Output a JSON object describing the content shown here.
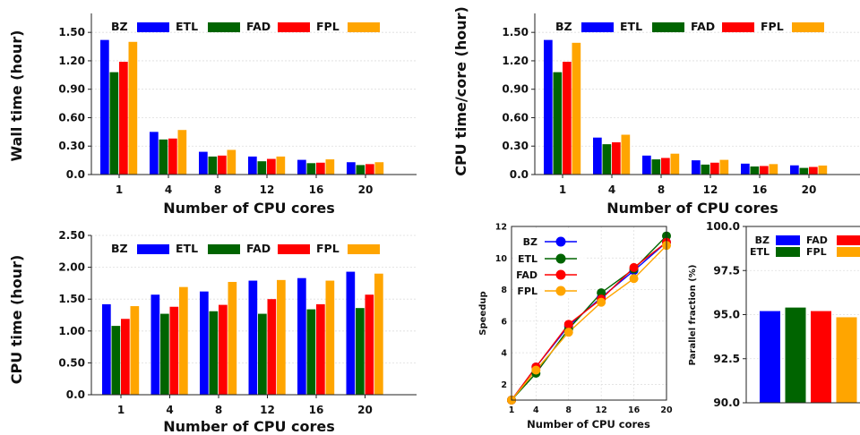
{
  "colors": {
    "BZ": "#0000ff",
    "ETL": "#006400",
    "FAD": "#ff0000",
    "FPL": "#ffa500"
  },
  "chart_data": [
    {
      "id": "wall",
      "type": "bar",
      "categories": [
        "1",
        "4",
        "8",
        "12",
        "16",
        "20"
      ],
      "series": [
        {
          "name": "BZ",
          "values": [
            1.42,
            0.45,
            0.24,
            0.19,
            0.155,
            0.13
          ]
        },
        {
          "name": "ETL",
          "values": [
            1.08,
            0.37,
            0.19,
            0.14,
            0.12,
            0.1
          ]
        },
        {
          "name": "FAD",
          "values": [
            1.19,
            0.38,
            0.2,
            0.165,
            0.125,
            0.11
          ]
        },
        {
          "name": "FPL",
          "values": [
            1.4,
            0.47,
            0.26,
            0.19,
            0.16,
            0.13
          ]
        }
      ],
      "xlabel": "Number of CPU cores",
      "ylabel": "Wall time (hour)",
      "ylim": [
        0,
        1.7
      ],
      "yticks": [
        "0.0",
        "0.30",
        "0.60",
        "0.90",
        "1.20",
        "1.50"
      ],
      "grid": true,
      "legend": "top"
    },
    {
      "id": "cpucore",
      "type": "bar",
      "categories": [
        "1",
        "4",
        "8",
        "12",
        "16",
        "20"
      ],
      "series": [
        {
          "name": "BZ",
          "values": [
            1.42,
            0.39,
            0.2,
            0.15,
            0.115,
            0.097
          ]
        },
        {
          "name": "ETL",
          "values": [
            1.08,
            0.32,
            0.16,
            0.105,
            0.085,
            0.07
          ]
        },
        {
          "name": "FAD",
          "values": [
            1.19,
            0.34,
            0.175,
            0.125,
            0.09,
            0.08
          ]
        },
        {
          "name": "FPL",
          "values": [
            1.39,
            0.42,
            0.22,
            0.155,
            0.11,
            0.095
          ]
        }
      ],
      "xlabel": "Number of CPU cores",
      "ylabel": "CPU time/core (hour)",
      "ylim": [
        0,
        1.7
      ],
      "yticks": [
        "0.0",
        "0.30",
        "0.60",
        "0.90",
        "1.20",
        "1.50"
      ],
      "grid": true,
      "legend": "top"
    },
    {
      "id": "cputime",
      "type": "bar",
      "categories": [
        "1",
        "4",
        "8",
        "12",
        "16",
        "20"
      ],
      "series": [
        {
          "name": "BZ",
          "values": [
            1.42,
            1.57,
            1.62,
            1.79,
            1.83,
            1.93
          ]
        },
        {
          "name": "ETL",
          "values": [
            1.08,
            1.27,
            1.31,
            1.27,
            1.34,
            1.36
          ]
        },
        {
          "name": "FAD",
          "values": [
            1.19,
            1.38,
            1.41,
            1.5,
            1.42,
            1.57
          ]
        },
        {
          "name": "FPL",
          "values": [
            1.39,
            1.69,
            1.77,
            1.8,
            1.79,
            1.9
          ]
        }
      ],
      "xlabel": "Number of CPU cores",
      "ylabel": "CPU time (hour)",
      "ylim": [
        0,
        2.5
      ],
      "yticks": [
        "0.0",
        "0.50",
        "1.00",
        "1.50",
        "2.00",
        "2.50"
      ],
      "grid": true,
      "legend": "top"
    },
    {
      "id": "speedup",
      "type": "line",
      "x": [
        1,
        4,
        8,
        12,
        16,
        20
      ],
      "series": [
        {
          "name": "BZ",
          "values": [
            1,
            3.1,
            5.7,
            7.5,
            9.2,
            11.0
          ]
        },
        {
          "name": "ETL",
          "values": [
            1,
            2.7,
            5.5,
            7.8,
            9.3,
            11.4
          ]
        },
        {
          "name": "FAD",
          "values": [
            1,
            3.1,
            5.8,
            7.4,
            9.4,
            11.0
          ]
        },
        {
          "name": "FPL",
          "values": [
            1,
            2.9,
            5.3,
            7.2,
            8.7,
            10.8
          ]
        }
      ],
      "xticks": [
        "1",
        "4",
        "8",
        "12",
        "16",
        "20"
      ],
      "yticks": [
        "2",
        "4",
        "6",
        "8",
        "10",
        "12"
      ],
      "xlabel": "Number of CPU cores",
      "ylabel": "Speedup",
      "xlim": [
        1,
        20
      ],
      "ylim": [
        1,
        12
      ],
      "grid": true,
      "legend": "top-left"
    },
    {
      "id": "parallel",
      "type": "bar",
      "categories": [
        "BZ",
        "ETL",
        "FAD",
        "FPL"
      ],
      "values": [
        95.2,
        95.4,
        95.2,
        94.85
      ],
      "ylabel": "Parallel fraction (%)",
      "ylim": [
        90,
        100
      ],
      "yticks": [
        "90.0",
        "92.5",
        "95.0",
        "97.5",
        "100.0"
      ],
      "grid": true,
      "legend": "top"
    }
  ]
}
